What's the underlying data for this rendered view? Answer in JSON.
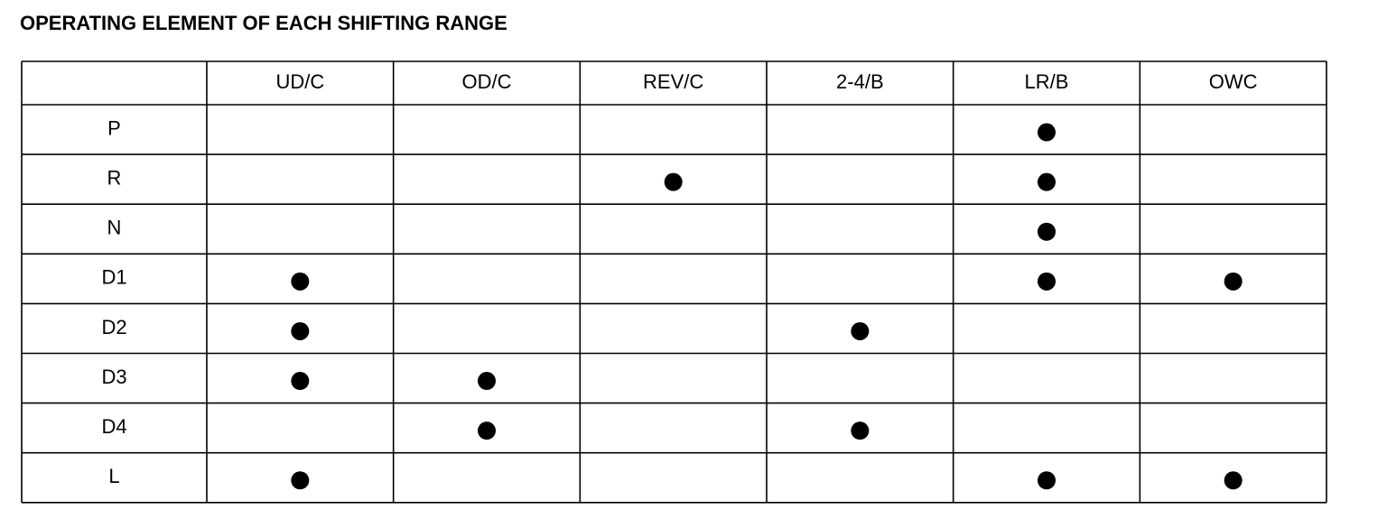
{
  "title": "OPERATING ELEMENT OF EACH SHIFTING RANGE",
  "table": {
    "columns": [
      "UD/C",
      "OD/C",
      "REV/C",
      "2-4/B",
      "LR/B",
      "OWC"
    ],
    "rows": [
      {
        "label": "P",
        "engaged": [
          false,
          false,
          false,
          false,
          true,
          false
        ]
      },
      {
        "label": "R",
        "engaged": [
          false,
          false,
          true,
          false,
          true,
          false
        ]
      },
      {
        "label": "N",
        "engaged": [
          false,
          false,
          false,
          false,
          true,
          false
        ]
      },
      {
        "label": "D1",
        "engaged": [
          true,
          false,
          false,
          false,
          true,
          true
        ]
      },
      {
        "label": "D2",
        "engaged": [
          true,
          false,
          false,
          true,
          false,
          false
        ]
      },
      {
        "label": "D3",
        "engaged": [
          true,
          true,
          false,
          false,
          false,
          false
        ]
      },
      {
        "label": "D4",
        "engaged": [
          false,
          true,
          false,
          true,
          false,
          false
        ]
      },
      {
        "label": "L",
        "engaged": [
          true,
          false,
          false,
          false,
          true,
          true
        ]
      }
    ]
  }
}
